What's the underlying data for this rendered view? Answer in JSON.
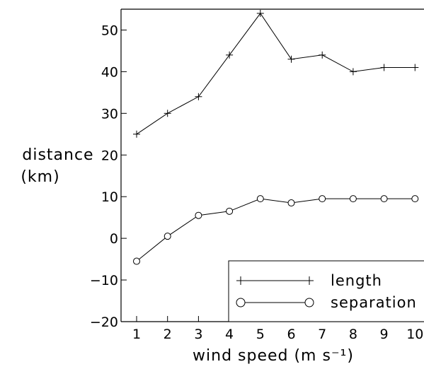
{
  "chart_data": {
    "type": "line",
    "xlabel": "wind speed (m s⁻¹)",
    "ylabel": [
      "distance",
      "(km)"
    ],
    "xlim": [
      0.4,
      10.2
    ],
    "ylim": [
      -20,
      55
    ],
    "x": [
      1,
      2,
      3,
      4,
      5,
      6,
      7,
      8,
      9,
      10
    ],
    "x_ticks": [
      1,
      2,
      3,
      4,
      5,
      6,
      7,
      8,
      9,
      10
    ],
    "y_ticks": [
      -20,
      -10,
      0,
      10,
      20,
      30,
      40,
      50
    ],
    "y_tick_labels": [
      "−20",
      "−10",
      "0",
      "10",
      "20",
      "30",
      "40",
      "50"
    ],
    "grid": false,
    "legend_position": "bottom-right",
    "series": [
      {
        "name": "length",
        "marker": "plus",
        "values": [
          25,
          30,
          34,
          44,
          54,
          43,
          44,
          40,
          41,
          41
        ]
      },
      {
        "name": "separation",
        "marker": "circle",
        "values": [
          -5.5,
          0.5,
          5.5,
          6.5,
          9.5,
          8.5,
          9.5,
          9.5,
          9.5,
          9.5
        ]
      }
    ]
  }
}
